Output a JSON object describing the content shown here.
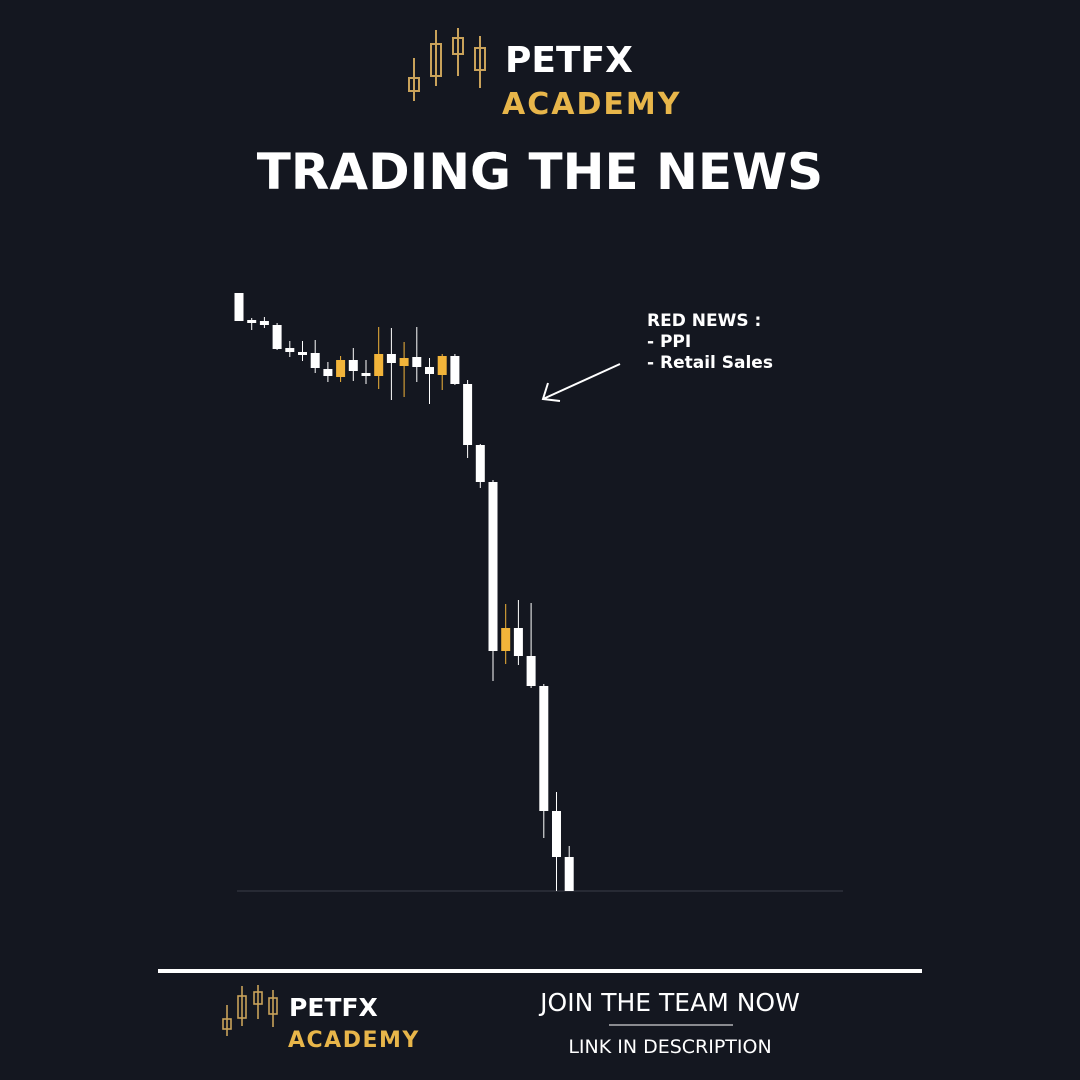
{
  "header": {
    "brand": "PETFX",
    "sub_brand": "ACADEMY",
    "title": "TRADING THE NEWS"
  },
  "chart_data": {
    "type": "candlestick",
    "annotation": [
      "RED NEWS :",
      "- PPI",
      "- Retail Sales"
    ],
    "up_color": "#f2b43a",
    "down_color": "#ffffff",
    "ylim": [
      0,
      600
    ],
    "open": [
      598,
      571,
      570,
      566,
      543,
      539,
      538,
      522,
      514,
      531,
      518,
      515,
      537,
      525,
      534,
      524,
      516,
      535,
      507,
      446,
      409,
      240,
      263,
      235,
      205,
      80,
      34
    ],
    "high": [
      598,
      573,
      574,
      568,
      550,
      550,
      551,
      529,
      535,
      543,
      531,
      564,
      563,
      549,
      564,
      533,
      537,
      537,
      511,
      447,
      411,
      287,
      291,
      288,
      207,
      99,
      45
    ],
    "low": [
      570,
      561,
      563,
      541,
      534,
      530,
      518,
      509,
      509,
      510,
      507,
      502,
      491,
      494,
      509,
      487,
      501,
      506,
      433,
      403,
      210,
      227,
      226,
      203,
      53,
      0,
      0
    ],
    "close": [
      570,
      568,
      566,
      542,
      539,
      536,
      523,
      515,
      531,
      520,
      515,
      537,
      528,
      533,
      524,
      517,
      535,
      507,
      446,
      409,
      240,
      263,
      235,
      205,
      80,
      34,
      0
    ]
  },
  "footer": {
    "brand": "PETFX",
    "sub_brand": "ACADEMY",
    "cta": "JOIN THE TEAM NOW",
    "link": "LINK IN DESCRIPTION"
  }
}
